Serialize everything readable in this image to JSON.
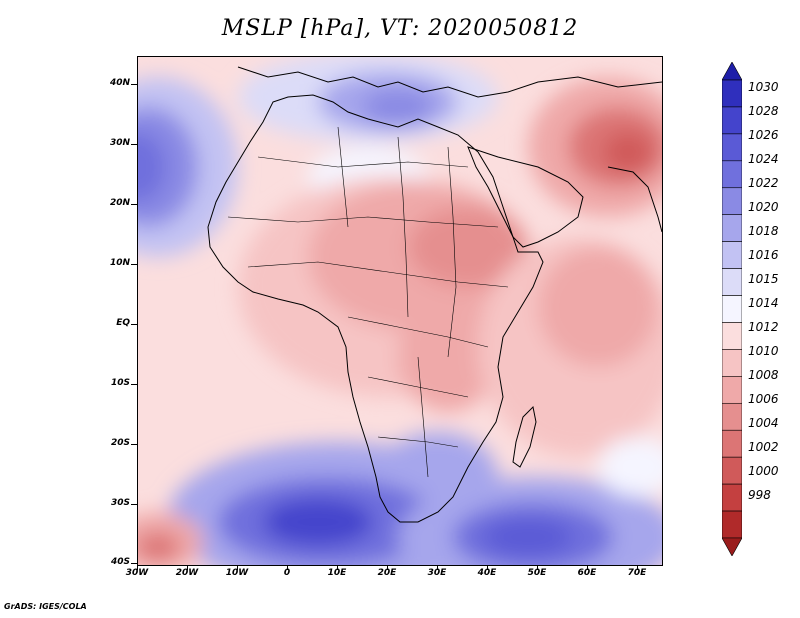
{
  "title": "MSLP [hPa], VT: 2020050812",
  "footer": "GrADS: IGES/COLA",
  "axes": {
    "lat_labels": [
      "40N",
      "30N",
      "20N",
      "10N",
      "EQ",
      "10S",
      "20S",
      "30S",
      "40S"
    ],
    "lon_labels": [
      "30W",
      "20W",
      "10W",
      "0",
      "10E",
      "20E",
      "30E",
      "40E",
      "50E",
      "60E",
      "70E"
    ]
  },
  "colorbar": {
    "levels": [
      "1030",
      "1028",
      "1026",
      "1024",
      "1022",
      "1020",
      "1018",
      "1016",
      "1015",
      "1014",
      "1012",
      "1010",
      "1008",
      "1006",
      "1004",
      "1002",
      "1000",
      "998"
    ],
    "colors": [
      "#1e1ea8",
      "#2f2fbd",
      "#4444cc",
      "#5a5ad6",
      "#7070dd",
      "#8a8ae4",
      "#a6a6ec",
      "#c2c2f3",
      "#dcdcf8",
      "#f5f5ff",
      "#fbdede",
      "#f6c4c4",
      "#efa9a9",
      "#e58f8f",
      "#dc7575",
      "#d05a5a",
      "#c44040",
      "#b02a2a",
      "#9a1c1c"
    ]
  },
  "palette": {
    "ocean_high": "#5a5ad6",
    "ocean_mid": "#c2c2f3",
    "neutral": "#f5f5ff",
    "low_light": "#f6c4c4",
    "low_mid": "#e58f8f",
    "low_deep": "#c44040"
  }
}
